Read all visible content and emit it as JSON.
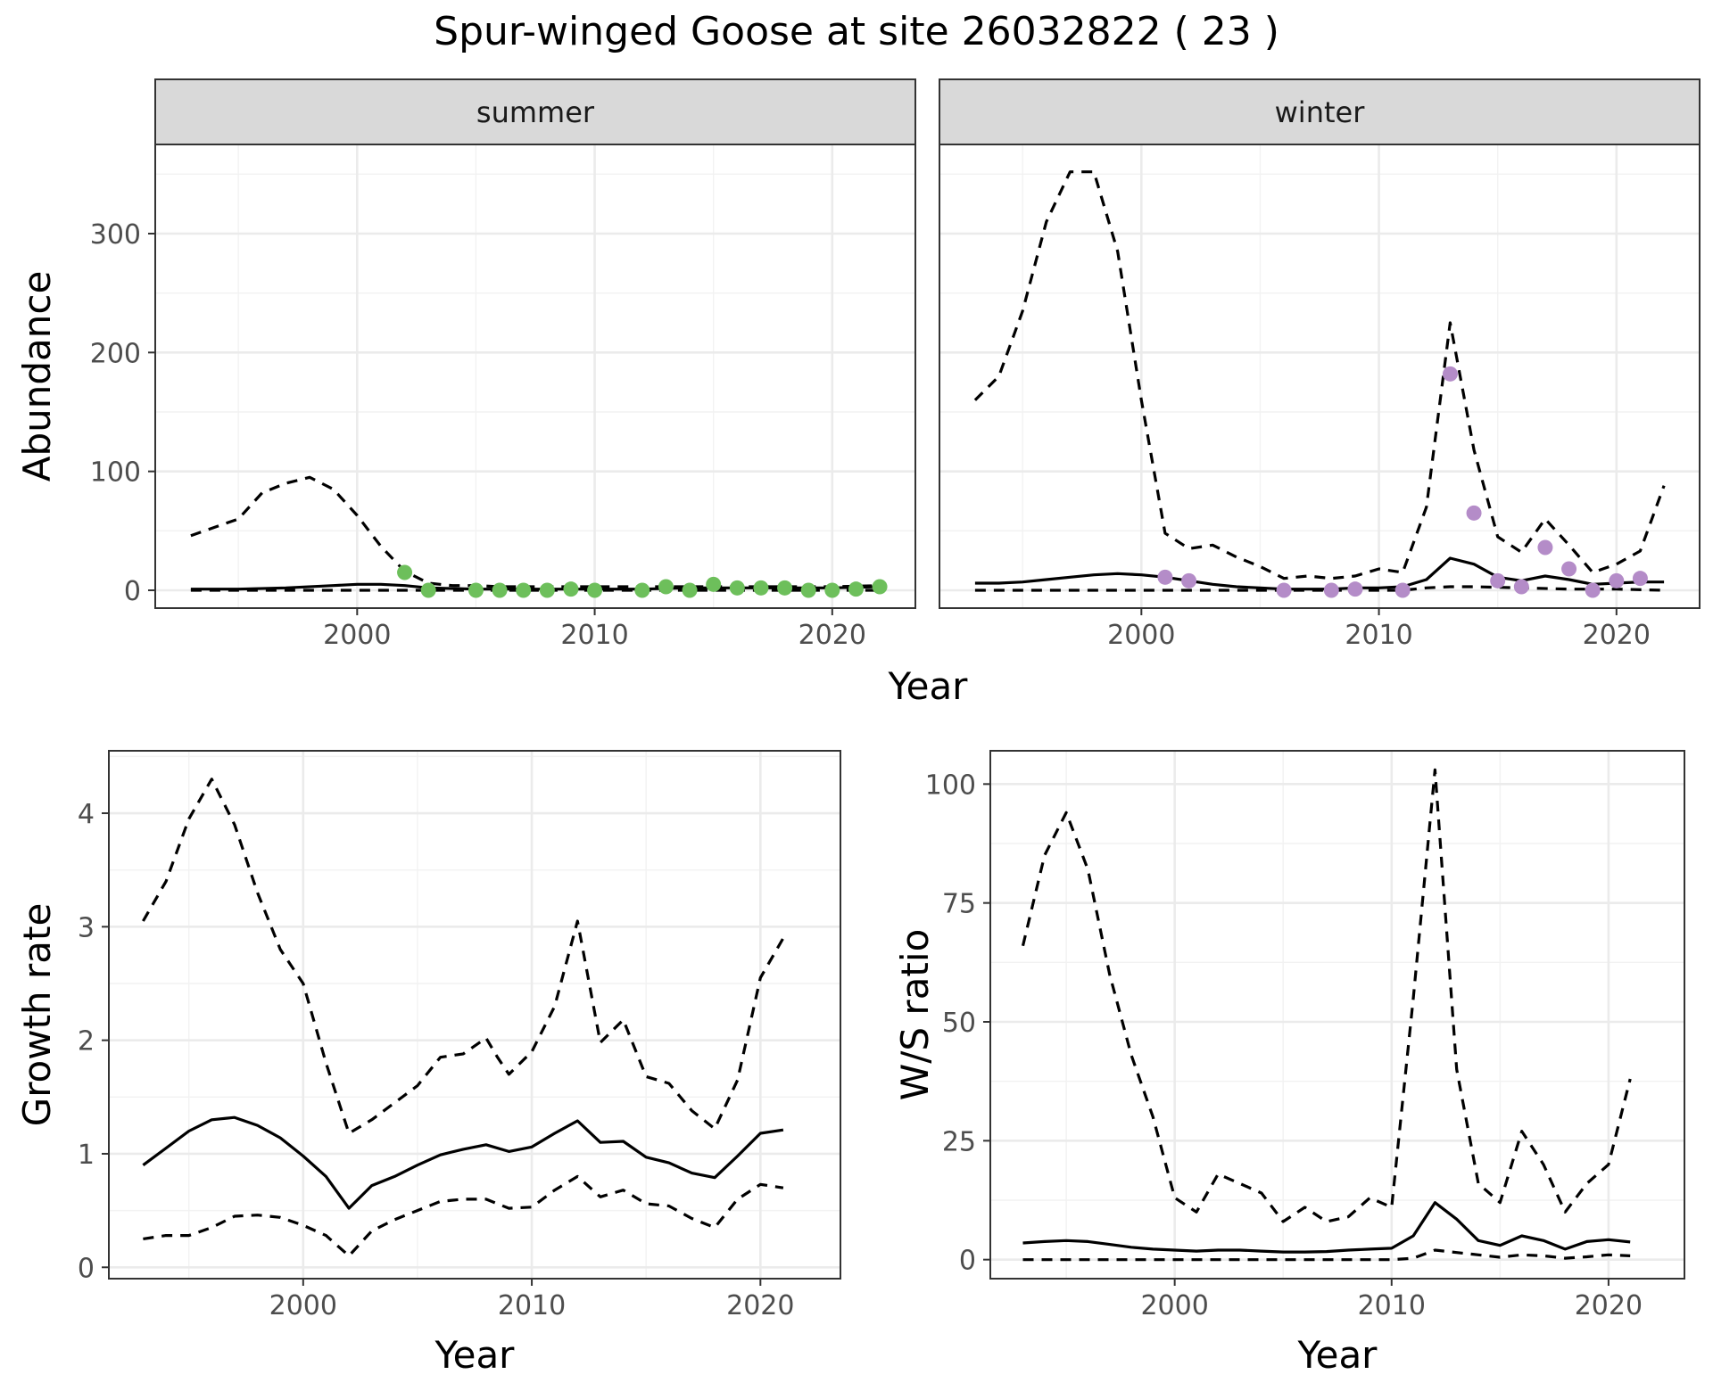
{
  "title": "Spur-winged Goose at site 26032822 ( 23 )",
  "colors": {
    "summer_points": "#6dbf5b",
    "winter_points": "#b48cc8"
  },
  "chart_data": [
    {
      "id": "abundance",
      "type": "line",
      "facets": [
        "summer",
        "winter"
      ],
      "xlabel": "Year",
      "ylabel": "Abundance",
      "xlim": [
        1991.5,
        2023.5
      ],
      "ylim": [
        -15,
        375
      ],
      "xticks": [
        2000,
        2010,
        2020
      ],
      "yticks": [
        0,
        100,
        200,
        300
      ],
      "grid": true,
      "panels": [
        {
          "facet": "summer",
          "point_color": "#6dbf5b",
          "lines": [
            {
              "style": "dashed",
              "x": [
                1993,
                1995,
                1996,
                1997,
                1998,
                1999,
                2000,
                2001,
                2002,
                2003,
                2004,
                2005,
                2006,
                2008,
                2010,
                2012,
                2014,
                2016,
                2018,
                2020,
                2022
              ],
              "y": [
                46,
                60,
                82,
                90,
                95,
                85,
                63,
                37,
                16,
                6,
                4,
                4,
                3,
                3,
                3,
                3,
                3,
                3,
                3,
                3,
                4
              ]
            },
            {
              "style": "solid",
              "x": [
                1993,
                1995,
                1997,
                1999,
                2000,
                2001,
                2002,
                2003,
                2005,
                2008,
                2010,
                2012,
                2014,
                2016,
                2018,
                2020,
                2022
              ],
              "y": [
                1,
                1,
                2,
                4,
                5,
                5,
                4,
                2,
                1,
                1,
                1,
                1,
                2,
                2,
                2,
                2,
                3
              ]
            },
            {
              "style": "dashed",
              "x": [
                1993,
                2000,
                2005,
                2010,
                2015,
                2022
              ],
              "y": [
                0,
                0,
                0,
                0,
                0,
                0
              ]
            }
          ],
          "points": {
            "x": [
              2002,
              2003,
              2005,
              2006,
              2007,
              2008,
              2009,
              2010,
              2012,
              2013,
              2014,
              2015,
              2016,
              2017,
              2018,
              2019,
              2020,
              2021,
              2022
            ],
            "y": [
              15,
              0,
              0,
              0,
              0,
              0,
              1,
              0,
              0,
              3,
              0,
              5,
              2,
              2,
              2,
              0,
              0,
              1,
              3
            ]
          }
        },
        {
          "facet": "winter",
          "point_color": "#b48cc8",
          "lines": [
            {
              "style": "dashed",
              "x": [
                1993,
                1994,
                1995,
                1996,
                1997,
                1998,
                1999,
                2000,
                2001,
                2002,
                2003,
                2004,
                2005,
                2006,
                2007,
                2008,
                2009,
                2010,
                2011,
                2012,
                2013,
                2014,
                2015,
                2016,
                2017,
                2018,
                2019,
                2020,
                2021,
                2022
              ],
              "y": [
                160,
                180,
                235,
                310,
                352,
                352,
                285,
                160,
                48,
                35,
                38,
                28,
                20,
                10,
                12,
                10,
                12,
                18,
                15,
                70,
                225,
                118,
                45,
                32,
                60,
                38,
                15,
                22,
                33,
                88
              ]
            },
            {
              "style": "solid",
              "x": [
                1993,
                1994,
                1995,
                1996,
                1997,
                1998,
                1999,
                2000,
                2001,
                2002,
                2003,
                2004,
                2005,
                2006,
                2007,
                2008,
                2009,
                2010,
                2011,
                2012,
                2013,
                2014,
                2015,
                2016,
                2017,
                2018,
                2019,
                2020,
                2021,
                2022
              ],
              "y": [
                6,
                6,
                7,
                9,
                11,
                13,
                14,
                13,
                11,
                8,
                5,
                3,
                2,
                1,
                1,
                1,
                2,
                2,
                3,
                9,
                27,
                22,
                11,
                8,
                12,
                9,
                5,
                6,
                7,
                7
              ]
            },
            {
              "style": "dashed",
              "x": [
                1993,
                2000,
                2005,
                2010,
                2011,
                2012,
                2013,
                2014,
                2016,
                2018,
                2020,
                2022
              ],
              "y": [
                0,
                0,
                0,
                0,
                0,
                2,
                3,
                3,
                2,
                1,
                1,
                0
              ]
            }
          ],
          "points": {
            "x": [
              2001,
              2002,
              2006,
              2008,
              2009,
              2011,
              2013,
              2014,
              2015,
              2016,
              2017,
              2018,
              2019,
              2020,
              2021
            ],
            "y": [
              11,
              8,
              0,
              0,
              1,
              0,
              182,
              65,
              8,
              3,
              36,
              18,
              0,
              8,
              10
            ]
          }
        }
      ]
    },
    {
      "id": "growth",
      "type": "line",
      "xlabel": "Year",
      "ylabel": "Growth rate",
      "xlim": [
        1991.5,
        2023.5
      ],
      "ylim": [
        -0.1,
        4.55
      ],
      "xticks": [
        2000,
        2010,
        2020
      ],
      "yticks": [
        0,
        1,
        2,
        3,
        4
      ],
      "grid": true,
      "lines": [
        {
          "style": "dashed",
          "x": [
            1993,
            1994,
            1995,
            1996,
            1997,
            1998,
            1999,
            2000,
            2001,
            2002,
            2003,
            2004,
            2005,
            2006,
            2007,
            2008,
            2008.5,
            2009,
            2010,
            2011,
            2012,
            2013,
            2014,
            2015,
            2016,
            2017,
            2018,
            2019,
            2020,
            2021
          ],
          "y": [
            3.05,
            3.4,
            3.95,
            4.3,
            3.9,
            3.3,
            2.8,
            2.5,
            1.8,
            1.18,
            1.3,
            1.45,
            1.6,
            1.85,
            1.88,
            2.02,
            1.85,
            1.7,
            1.9,
            2.3,
            3.05,
            1.98,
            2.18,
            1.68,
            1.62,
            1.38,
            1.22,
            1.65,
            2.55,
            2.9
          ]
        },
        {
          "style": "solid",
          "x": [
            1993,
            1994,
            1995,
            1996,
            1997,
            1998,
            1999,
            2000,
            2001,
            2002,
            2003,
            2004,
            2005,
            2006,
            2007,
            2008,
            2009,
            2010,
            2011,
            2012,
            2013,
            2014,
            2015,
            2016,
            2017,
            2018,
            2019,
            2020,
            2021
          ],
          "y": [
            0.9,
            1.05,
            1.2,
            1.3,
            1.32,
            1.25,
            1.14,
            0.98,
            0.8,
            0.52,
            0.72,
            0.8,
            0.9,
            0.99,
            1.04,
            1.08,
            1.02,
            1.06,
            1.18,
            1.29,
            1.1,
            1.11,
            0.97,
            0.92,
            0.83,
            0.79,
            0.98,
            1.18,
            1.21
          ]
        },
        {
          "style": "dashed",
          "x": [
            1993,
            1994,
            1995,
            1996,
            1997,
            1998,
            1999,
            2000,
            2001,
            2002,
            2003,
            2004,
            2005,
            2006,
            2007,
            2008,
            2009,
            2010,
            2011,
            2012,
            2013,
            2014,
            2015,
            2016,
            2017,
            2018,
            2019,
            2020,
            2021
          ],
          "y": [
            0.25,
            0.28,
            0.28,
            0.35,
            0.45,
            0.46,
            0.44,
            0.37,
            0.28,
            0.1,
            0.32,
            0.42,
            0.5,
            0.58,
            0.6,
            0.6,
            0.52,
            0.53,
            0.68,
            0.8,
            0.62,
            0.68,
            0.56,
            0.54,
            0.43,
            0.35,
            0.6,
            0.73,
            0.7
          ]
        }
      ]
    },
    {
      "id": "ws_ratio",
      "type": "line",
      "xlabel": "Year",
      "ylabel": "W/S ratio",
      "xlim": [
        1991.5,
        2023.5
      ],
      "ylim": [
        -4,
        107
      ],
      "xticks": [
        2000,
        2010,
        2020
      ],
      "yticks": [
        0,
        25,
        50,
        75,
        100
      ],
      "grid": true,
      "lines": [
        {
          "style": "dashed",
          "x": [
            1993,
            1994,
            1995,
            1996,
            1997,
            1998,
            1999,
            2000,
            2001,
            2002,
            2003,
            2004,
            2005,
            2006,
            2007,
            2008,
            2009,
            2010,
            2011,
            2012,
            2013,
            2014,
            2015,
            2016,
            2017,
            2018,
            2019,
            2020,
            2021
          ],
          "y": [
            66,
            85,
            94,
            82,
            60,
            43,
            30,
            13,
            10,
            18,
            16,
            14,
            8,
            11,
            8,
            9,
            13,
            11,
            55,
            103,
            40,
            16,
            12,
            27,
            20,
            10,
            16,
            20,
            38
          ]
        },
        {
          "style": "solid",
          "x": [
            1993,
            1994,
            1995,
            1996,
            1997,
            1998,
            1999,
            2000,
            2001,
            2002,
            2003,
            2004,
            2005,
            2006,
            2007,
            2008,
            2009,
            2010,
            2011,
            2012,
            2013,
            2014,
            2015,
            2016,
            2017,
            2018,
            2019,
            2020,
            2021
          ],
          "y": [
            3.5,
            3.8,
            4,
            3.8,
            3.2,
            2.6,
            2.2,
            2,
            1.8,
            2,
            2,
            1.8,
            1.6,
            1.6,
            1.7,
            2,
            2.2,
            2.4,
            5,
            12,
            8.5,
            4,
            3,
            5,
            4,
            2.2,
            3.8,
            4.2,
            3.7
          ]
        },
        {
          "style": "dashed",
          "x": [
            1993,
            1995,
            2000,
            2005,
            2010,
            2011,
            2012,
            2013,
            2014,
            2015,
            2016,
            2017,
            2018,
            2019,
            2020,
            2021
          ],
          "y": [
            0,
            0,
            0,
            0,
            0,
            0.3,
            2,
            1.5,
            1,
            0.5,
            1,
            0.8,
            0.3,
            0.6,
            1,
            0.8
          ]
        }
      ]
    }
  ]
}
